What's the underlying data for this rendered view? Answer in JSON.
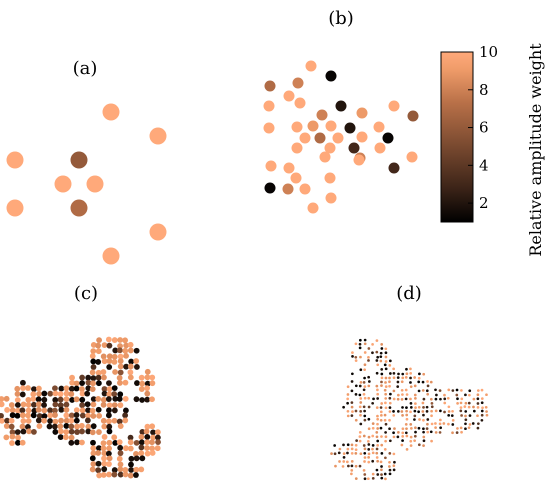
{
  "chart_data": {
    "type": "scatter",
    "panels": [
      {
        "label": "(a)"
      },
      {
        "label": "(b)"
      },
      {
        "label": "(c)"
      },
      {
        "label": "(d)"
      }
    ],
    "colorbar": {
      "label": "Relative amplitude weight",
      "min": 1,
      "max": 10,
      "ticks": [
        2,
        4,
        6,
        8,
        10
      ],
      "colormap": [
        "#000000",
        "#3c2418",
        "#7a4a30",
        "#b87048",
        "#f09c6a",
        "#ffa97a"
      ]
    },
    "point_weights": {
      "a": [
        10,
        10,
        10,
        6,
        10,
        10,
        10,
        7,
        10,
        10
      ],
      "b": [
        10,
        1.2,
        8,
        7,
        10,
        10,
        10,
        2,
        8,
        9,
        10,
        6,
        9,
        10,
        10,
        2,
        10,
        10,
        10,
        7,
        10,
        1.2,
        10,
        10,
        10,
        10,
        3,
        10,
        10,
        8,
        3,
        10,
        10,
        1.2,
        10,
        10,
        8,
        10,
        10,
        10,
        10
      ]
    }
  }
}
